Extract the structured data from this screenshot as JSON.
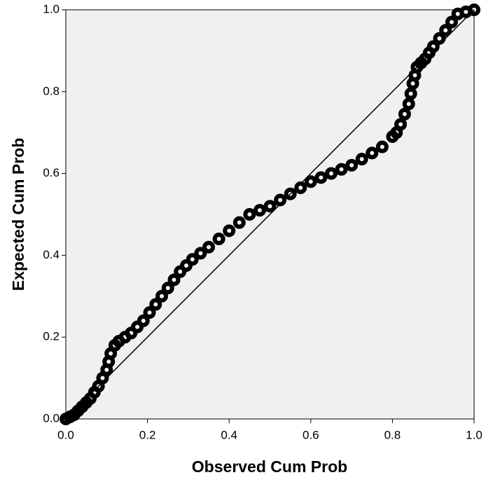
{
  "chart_data": {
    "type": "scatter",
    "x_label": "Observed Cum Prob",
    "y_label": "Expected Cum Prob",
    "xlim": [
      0,
      1
    ],
    "ylim": [
      0,
      1
    ],
    "xticks": [
      {
        "value": 0,
        "label": "0.0"
      },
      0.2,
      0.4,
      0.6,
      0.8,
      {
        "value": 1,
        "label": "1.0"
      }
    ],
    "yticks": [
      {
        "value": 0,
        "label": "0.0"
      },
      0.2,
      0.4,
      0.6,
      0.8,
      {
        "value": 1,
        "label": "1.0"
      }
    ],
    "color": "#000000",
    "reference_line": true,
    "x": [
      0,
      0.01,
      0.02,
      0.03,
      0.04,
      0.05,
      0.06,
      0.07,
      0.08,
      0.09,
      0.1,
      0.105,
      0.11,
      0.12,
      0.13,
      0.145,
      0.16,
      0.175,
      0.19,
      0.205,
      0.22,
      0.235,
      0.25,
      0.265,
      0.28,
      0.295,
      0.31,
      0.33,
      0.35,
      0.375,
      0.4,
      0.425,
      0.45,
      0.475,
      0.5,
      0.525,
      0.55,
      0.575,
      0.6,
      0.625,
      0.65,
      0.675,
      0.7,
      0.725,
      0.75,
      0.775,
      0.8,
      0.81,
      0.82,
      0.83,
      0.84,
      0.845,
      0.85,
      0.855,
      0.86,
      0.87,
      0.88,
      0.89,
      0.9,
      0.915,
      0.93,
      0.945,
      0.96,
      0.98,
      1
    ],
    "values": [
      0,
      0.005,
      0.01,
      0.02,
      0.03,
      0.04,
      0.05,
      0.065,
      0.08,
      0.1,
      0.12,
      0.14,
      0.16,
      0.18,
      0.19,
      0.2,
      0.21,
      0.225,
      0.24,
      0.26,
      0.28,
      0.3,
      0.32,
      0.34,
      0.36,
      0.375,
      0.39,
      0.405,
      0.42,
      0.44,
      0.46,
      0.48,
      0.5,
      0.51,
      0.52,
      0.535,
      0.55,
      0.565,
      0.58,
      0.59,
      0.6,
      0.61,
      0.62,
      0.635,
      0.65,
      0.665,
      0.69,
      0.7,
      0.72,
      0.745,
      0.77,
      0.795,
      0.82,
      0.84,
      0.86,
      0.87,
      0.88,
      0.895,
      0.91,
      0.93,
      0.95,
      0.97,
      0.99,
      0.995,
      1
    ]
  }
}
